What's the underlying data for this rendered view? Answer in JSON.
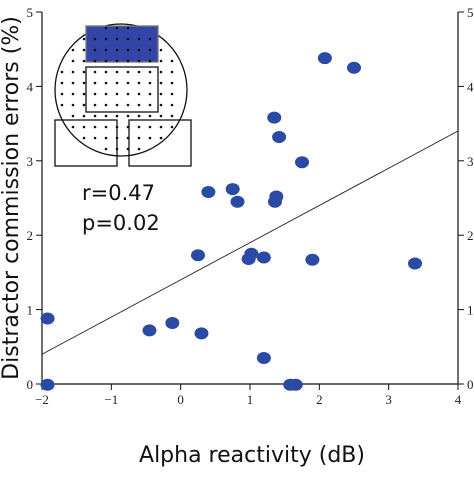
{
  "chart_data": {
    "type": "scatter",
    "title": "",
    "xlabel": "Alpha reactivity (dB)",
    "ylabel": "Distractor commission errors (%)",
    "xlim": [
      -2,
      4
    ],
    "ylim": [
      0,
      5
    ],
    "x_ticks": [
      -2,
      -1,
      0,
      1,
      2,
      3,
      4
    ],
    "y_ticks": [
      0,
      1,
      2,
      3,
      4,
      5
    ],
    "x_tick_labels": [
      "−2",
      "−1",
      "0",
      "1",
      "2",
      "3",
      "4"
    ],
    "y_tick_labels": [
      "0",
      "1",
      "2",
      "3",
      "4",
      "5"
    ],
    "grid": false,
    "point_color": "#2b4aa3",
    "points": [
      {
        "x": -1.92,
        "y": 0.88
      },
      {
        "x": -1.92,
        "y": -0.01
      },
      {
        "x": -0.45,
        "y": 0.72
      },
      {
        "x": -0.12,
        "y": 0.82
      },
      {
        "x": 0.3,
        "y": 0.68
      },
      {
        "x": 0.25,
        "y": 1.73
      },
      {
        "x": 0.4,
        "y": 2.58
      },
      {
        "x": 0.75,
        "y": 2.62
      },
      {
        "x": 0.82,
        "y": 2.45
      },
      {
        "x": 0.98,
        "y": 1.68
      },
      {
        "x": 1.02,
        "y": 1.75
      },
      {
        "x": 1.2,
        "y": 1.7
      },
      {
        "x": 1.2,
        "y": 0.35
      },
      {
        "x": 1.36,
        "y": 2.45
      },
      {
        "x": 1.38,
        "y": 2.52
      },
      {
        "x": 1.35,
        "y": 3.58
      },
      {
        "x": 1.42,
        "y": 3.32
      },
      {
        "x": 1.75,
        "y": 2.98
      },
      {
        "x": 1.9,
        "y": 1.67
      },
      {
        "x": 2.08,
        "y": 4.38
      },
      {
        "x": 2.5,
        "y": 4.25
      },
      {
        "x": 3.38,
        "y": 1.62
      },
      {
        "x": 1.58,
        "y": -0.01
      },
      {
        "x": 1.66,
        "y": -0.01
      }
    ],
    "regression": {
      "x": [
        -2,
        4
      ],
      "y": [
        0.4,
        3.4
      ]
    },
    "annotations": [
      "r=0.47",
      "p=0.02"
    ]
  }
}
